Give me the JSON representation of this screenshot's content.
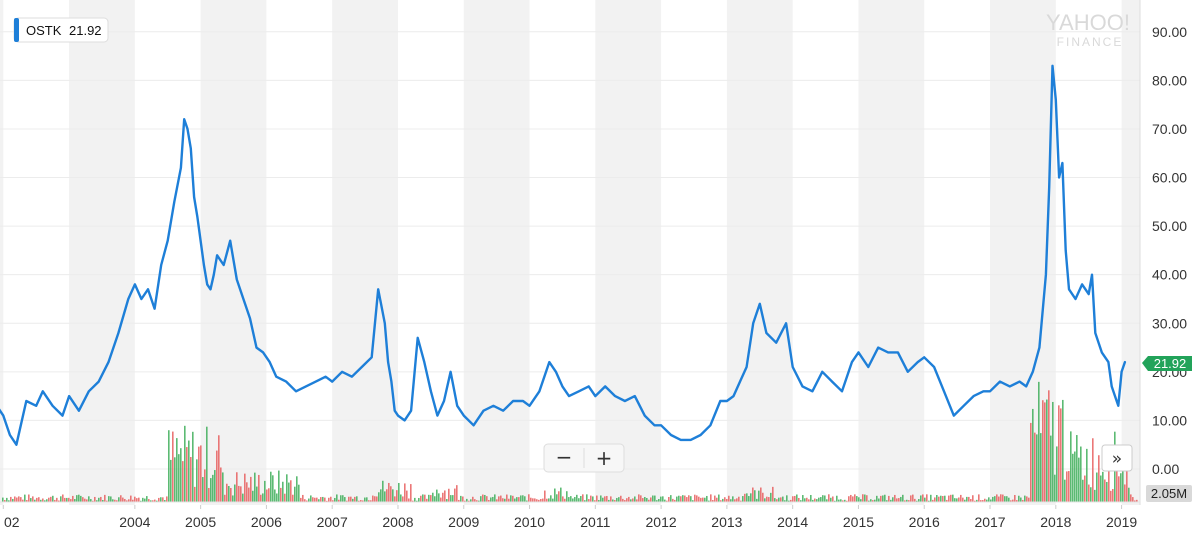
{
  "watermark": {
    "line1": "YAHOO!",
    "line2": "FINANCE"
  },
  "ticker": {
    "symbol": "OSTK",
    "value": "21.92",
    "accent": "#1e7fd8"
  },
  "price_badge": {
    "text": "21.92",
    "color": "#22a35a"
  },
  "volume_badge": {
    "text": "2.05M"
  },
  "controls": {
    "zoom_out": "−",
    "zoom_in": "+",
    "next": "»"
  },
  "colors": {
    "line": "#1e7fd8",
    "band": "#f2f2f2",
    "grid": "#ececec",
    "volume_up": "#3fae5a",
    "volume_down": "#e85f5f"
  },
  "chart_data": {
    "type": "line",
    "title": "",
    "xlabel": "",
    "ylabel": "",
    "x_tick_labels": [
      "02",
      "2004",
      "2005",
      "2006",
      "2007",
      "2008",
      "2009",
      "2010",
      "2011",
      "2012",
      "2013",
      "2014",
      "2015",
      "2016",
      "2017",
      "2018",
      "2019"
    ],
    "x_tick_years": [
      2002.0,
      2004.0,
      2005.0,
      2006.0,
      2007.0,
      2008.0,
      2009.0,
      2010.0,
      2011.0,
      2012.0,
      2013.0,
      2014.0,
      2015.0,
      2016.0,
      2017.0,
      2018.0,
      2019.0
    ],
    "y_tick_labels": [
      "90.00",
      "80.00",
      "70.00",
      "60.00",
      "50.00",
      "40.00",
      "30.00",
      "20.00",
      "10.00",
      "0.00"
    ],
    "ylim": [
      0,
      95
    ],
    "grid": true,
    "last_value": 21.92,
    "series": [
      {
        "name": "OSTK",
        "x": [
          2001.9,
          2002.0,
          2002.1,
          2002.2,
          2002.35,
          2002.5,
          2002.6,
          2002.75,
          2002.9,
          2003.0,
          2003.15,
          2003.3,
          2003.45,
          2003.6,
          2003.75,
          2003.9,
          2004.0,
          2004.1,
          2004.2,
          2004.3,
          2004.4,
          2004.5,
          2004.6,
          2004.7,
          2004.75,
          2004.8,
          2004.85,
          2004.9,
          2004.95,
          2005.0,
          2005.05,
          2005.1,
          2005.15,
          2005.2,
          2005.25,
          2005.35,
          2005.45,
          2005.55,
          2005.65,
          2005.75,
          2005.85,
          2005.95,
          2006.05,
          2006.15,
          2006.3,
          2006.45,
          2006.6,
          2006.75,
          2006.9,
          2007.0,
          2007.15,
          2007.3,
          2007.45,
          2007.6,
          2007.7,
          2007.8,
          2007.85,
          2007.9,
          2007.95,
          2008.0,
          2008.1,
          2008.2,
          2008.3,
          2008.4,
          2008.5,
          2008.6,
          2008.7,
          2008.8,
          2008.9,
          2009.0,
          2009.15,
          2009.3,
          2009.45,
          2009.6,
          2009.75,
          2009.9,
          2010.0,
          2010.15,
          2010.3,
          2010.4,
          2010.5,
          2010.6,
          2010.75,
          2010.9,
          2011.0,
          2011.15,
          2011.3,
          2011.45,
          2011.6,
          2011.75,
          2011.9,
          2012.0,
          2012.15,
          2012.3,
          2012.45,
          2012.6,
          2012.75,
          2012.9,
          2013.0,
          2013.1,
          2013.2,
          2013.3,
          2013.4,
          2013.5,
          2013.6,
          2013.75,
          2013.9,
          2014.0,
          2014.15,
          2014.3,
          2014.45,
          2014.6,
          2014.75,
          2014.9,
          2015.0,
          2015.15,
          2015.3,
          2015.45,
          2015.6,
          2015.75,
          2015.9,
          2016.0,
          2016.15,
          2016.3,
          2016.45,
          2016.6,
          2016.75,
          2016.9,
          2017.0,
          2017.15,
          2017.3,
          2017.45,
          2017.55,
          2017.65,
          2017.75,
          2017.85,
          2017.9,
          2017.95,
          2018.0,
          2018.05,
          2018.1,
          2018.15,
          2018.2,
          2018.3,
          2018.4,
          2018.5,
          2018.55,
          2018.6,
          2018.7,
          2018.8,
          2018.85,
          2018.9,
          2018.95,
          2019.0,
          2019.05
        ],
        "y": [
          13,
          11,
          7,
          5,
          14,
          13,
          16,
          13,
          11,
          15,
          12,
          16,
          18,
          22,
          28,
          35,
          38,
          35,
          37,
          33,
          42,
          47,
          55,
          62,
          72,
          70,
          66,
          56,
          52,
          47,
          42,
          38,
          37,
          40,
          44,
          42,
          47,
          39,
          35,
          31,
          25,
          24,
          22,
          19,
          18,
          16,
          17,
          18,
          19,
          18,
          20,
          19,
          21,
          23,
          37,
          30,
          22,
          18,
          12,
          11,
          10,
          12,
          27,
          22,
          16,
          11,
          14,
          20,
          13,
          11,
          9,
          12,
          13,
          12,
          14,
          14,
          13,
          16,
          22,
          20,
          17,
          15,
          16,
          17,
          15,
          17,
          15,
          14,
          15,
          11,
          9,
          9,
          7,
          6,
          6,
          7,
          9,
          14,
          14,
          15,
          18,
          21,
          30,
          34,
          28,
          26,
          30,
          21,
          17,
          16,
          20,
          18,
          16,
          22,
          24,
          21,
          25,
          24,
          24,
          20,
          22,
          23,
          21,
          16,
          11,
          13,
          15,
          16,
          16,
          18,
          17,
          18,
          17,
          20,
          25,
          40,
          58,
          83,
          76,
          60,
          63,
          45,
          37,
          35,
          38,
          36,
          40,
          28,
          24,
          22,
          17,
          15,
          13,
          20,
          22
        ]
      }
    ],
    "volume": {
      "label": "2.05M",
      "clusters": [
        {
          "from": 2004.5,
          "to": 2005.3,
          "level": 0.6
        },
        {
          "from": 2005.3,
          "to": 2006.5,
          "level": 0.25
        },
        {
          "from": 2007.6,
          "to": 2008.2,
          "level": 0.18
        },
        {
          "from": 2008.5,
          "to": 2008.9,
          "level": 0.15
        },
        {
          "from": 2010.2,
          "to": 2010.6,
          "level": 0.12
        },
        {
          "from": 2013.2,
          "to": 2013.7,
          "level": 0.12
        },
        {
          "from": 2017.6,
          "to": 2018.2,
          "level": 0.95
        },
        {
          "from": 2018.2,
          "to": 2019.1,
          "level": 0.55
        }
      ]
    }
  }
}
